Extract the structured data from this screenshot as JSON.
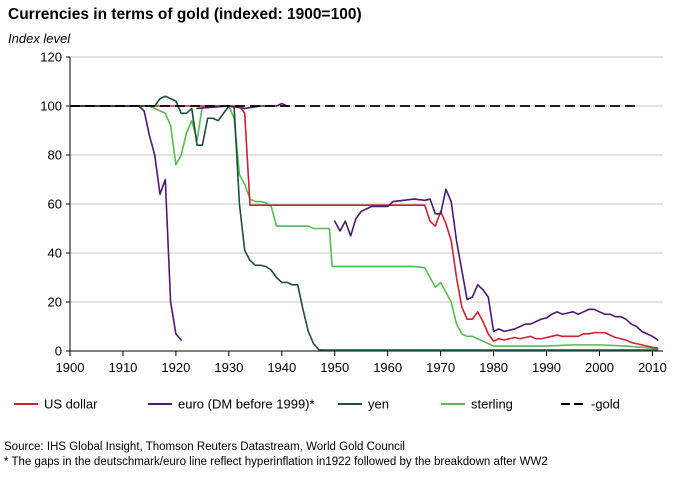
{
  "chart_data": {
    "type": "line",
    "title": "Currencies in terms of gold (indexed: 1900=100)",
    "ylabel": "Index level",
    "xlabel": "",
    "xlim": [
      1900,
      2012
    ],
    "ylim": [
      0,
      120
    ],
    "xticks": [
      "1900",
      "1910",
      "1920",
      "1930",
      "1940",
      "1950",
      "1960",
      "1970",
      "1980",
      "1990",
      "2000",
      "2010"
    ],
    "yticks": [
      "0",
      "20",
      "40",
      "60",
      "80",
      "100",
      "120"
    ],
    "grid": "horizontal",
    "legend_position": "bottom",
    "series": [
      {
        "name": "US dollar",
        "color": "#cc2233",
        "dash": "solid",
        "segments": [
          [
            [
              1900,
              100
            ],
            [
              1932,
              100
            ],
            [
              1933,
              97
            ],
            [
              1934,
              59.5
            ],
            [
              1940,
              59.5
            ],
            [
              1950,
              59.5
            ],
            [
              1960,
              59.5
            ],
            [
              1967,
              59.5
            ],
            [
              1968,
              53
            ],
            [
              1969,
              51
            ],
            [
              1970,
              57
            ],
            [
              1971,
              52
            ],
            [
              1972,
              45
            ],
            [
              1973,
              30
            ],
            [
              1974,
              18
            ],
            [
              1975,
              13
            ],
            [
              1976,
              13
            ],
            [
              1977,
              16
            ],
            [
              1978,
              12
            ],
            [
              1979,
              7
            ],
            [
              1980,
              4
            ],
            [
              1981,
              5
            ],
            [
              1982,
              4.5
            ],
            [
              1983,
              5
            ],
            [
              1984,
              5.5
            ],
            [
              1985,
              5
            ],
            [
              1986,
              5.5
            ],
            [
              1987,
              6
            ],
            [
              1988,
              5
            ],
            [
              1989,
              5
            ],
            [
              1990,
              5.5
            ],
            [
              1991,
              6
            ],
            [
              1992,
              6.5
            ],
            [
              1993,
              6
            ],
            [
              1994,
              6
            ],
            [
              1995,
              6
            ],
            [
              1996,
              6
            ],
            [
              1997,
              7
            ],
            [
              1998,
              7
            ],
            [
              1999,
              7.5
            ],
            [
              2000,
              7.5
            ],
            [
              2001,
              7.5
            ],
            [
              2002,
              6.5
            ],
            [
              2003,
              5.5
            ],
            [
              2004,
              5
            ],
            [
              2005,
              4.5
            ],
            [
              2006,
              3.5
            ],
            [
              2007,
              3
            ],
            [
              2008,
              2.5
            ],
            [
              2009,
              2
            ],
            [
              2010,
              1.5
            ],
            [
              2011,
              1.2
            ]
          ]
        ]
      },
      {
        "name": "euro (DM before 1999)*",
        "color": "#4b1a74",
        "dash": "solid",
        "segments": [
          [
            [
              1900,
              100
            ],
            [
              1912,
              100
            ],
            [
              1913,
              100
            ],
            [
              1914,
              98
            ],
            [
              1915,
              88
            ],
            [
              1916,
              80
            ],
            [
              1917,
              64
            ],
            [
              1918,
              70
            ],
            [
              1919,
              20
            ],
            [
              1920,
              7
            ],
            [
              1921,
              4.5
            ]
          ],
          [
            [
              1924,
              99
            ],
            [
              1930,
              100
            ],
            [
              1933,
              99
            ],
            [
              1936,
              100
            ],
            [
              1939,
              100
            ],
            [
              1940,
              101
            ],
            [
              1941,
              100
            ]
          ],
          [
            [
              1950,
              53
            ],
            [
              1951,
              49
            ],
            [
              1952,
              53
            ],
            [
              1953,
              47
            ],
            [
              1954,
              54
            ],
            [
              1955,
              57
            ],
            [
              1957,
              59
            ],
            [
              1959,
              59
            ],
            [
              1960,
              59
            ],
            [
              1961,
              61
            ],
            [
              1963,
              61.5
            ],
            [
              1965,
              62
            ],
            [
              1967,
              61.5
            ],
            [
              1968,
              62
            ],
            [
              1969,
              56
            ],
            [
              1970,
              56
            ],
            [
              1971,
              66
            ],
            [
              1972,
              61
            ],
            [
              1973,
              45
            ],
            [
              1974,
              33
            ],
            [
              1975,
              21
            ],
            [
              1976,
              22
            ],
            [
              1977,
              27
            ],
            [
              1978,
              25
            ],
            [
              1979,
              22
            ],
            [
              1980,
              8
            ],
            [
              1981,
              9
            ],
            [
              1982,
              8
            ],
            [
              1983,
              8.5
            ],
            [
              1984,
              9
            ],
            [
              1985,
              10
            ],
            [
              1986,
              11
            ],
            [
              1987,
              11
            ],
            [
              1988,
              12
            ],
            [
              1989,
              13
            ],
            [
              1990,
              13.5
            ],
            [
              1991,
              15
            ],
            [
              1992,
              16
            ],
            [
              1993,
              15
            ],
            [
              1994,
              15.5
            ],
            [
              1995,
              16
            ],
            [
              1996,
              15
            ],
            [
              1997,
              16
            ],
            [
              1998,
              17
            ],
            [
              1999,
              17
            ],
            [
              2000,
              16
            ],
            [
              2001,
              15
            ],
            [
              2002,
              15
            ],
            [
              2003,
              14
            ],
            [
              2004,
              14
            ],
            [
              2005,
              13
            ],
            [
              2006,
              11
            ],
            [
              2007,
              10
            ],
            [
              2008,
              8
            ],
            [
              2009,
              7
            ],
            [
              2010,
              6
            ],
            [
              2011,
              4.5
            ]
          ]
        ]
      },
      {
        "name": "yen",
        "color": "#1f4e3d",
        "dash": "solid",
        "segments": [
          [
            [
              1900,
              100
            ],
            [
              1916,
              100
            ],
            [
              1917,
              103
            ],
            [
              1918,
              104
            ],
            [
              1919,
              103
            ],
            [
              1920,
              102
            ],
            [
              1921,
              97
            ],
            [
              1922,
              97
            ],
            [
              1923,
              99
            ],
            [
              1924,
              84
            ],
            [
              1925,
              84
            ],
            [
              1926,
              95
            ],
            [
              1927,
              95
            ],
            [
              1928,
              94
            ],
            [
              1929,
              97
            ],
            [
              1930,
              100
            ],
            [
              1931,
              99.5
            ],
            [
              1932,
              60
            ],
            [
              1933,
              41
            ],
            [
              1934,
              37
            ],
            [
              1935,
              35
            ],
            [
              1936,
              35
            ],
            [
              1937,
              34.5
            ],
            [
              1938,
              33
            ],
            [
              1939,
              30
            ],
            [
              1940,
              28
            ],
            [
              1941,
              28
            ],
            [
              1942,
              27
            ],
            [
              1943,
              27
            ],
            [
              1944,
              17
            ],
            [
              1945,
              8
            ],
            [
              1946,
              3
            ],
            [
              1947,
              0.5
            ],
            [
              1948,
              0.4
            ],
            [
              1950,
              0.4
            ],
            [
              1960,
              0.4
            ],
            [
              1970,
              0.4
            ],
            [
              1980,
              0.4
            ],
            [
              1990,
              0.4
            ],
            [
              2000,
              0.4
            ],
            [
              2011,
              0.4
            ]
          ]
        ]
      },
      {
        "name": "sterling",
        "color": "#55bb55",
        "dash": "solid",
        "segments": [
          [
            [
              1900,
              100
            ],
            [
              1913,
              100
            ],
            [
              1914,
              100
            ],
            [
              1915,
              100
            ],
            [
              1916,
              99
            ],
            [
              1917,
              98
            ],
            [
              1918,
              97
            ],
            [
              1919,
              92
            ],
            [
              1920,
              76
            ],
            [
              1921,
              80
            ],
            [
              1922,
              89
            ],
            [
              1923,
              94
            ],
            [
              1924,
              86
            ],
            [
              1925,
              100
            ],
            [
              1926,
              100
            ],
            [
              1930,
              100
            ],
            [
              1931,
              95
            ],
            [
              1932,
              72
            ],
            [
              1933,
              68
            ],
            [
              1934,
              62
            ],
            [
              1935,
              61
            ],
            [
              1936,
              61
            ],
            [
              1937,
              60.5
            ],
            [
              1938,
              59
            ],
            [
              1939,
              51
            ],
            [
              1940,
              51
            ],
            [
              1945,
              51
            ],
            [
              1946,
              50
            ],
            [
              1949,
              50
            ],
            [
              1949.5,
              34.5
            ],
            [
              1955,
              34.5
            ],
            [
              1960,
              34.5
            ],
            [
              1965,
              34.5
            ],
            [
              1967,
              34
            ],
            [
              1968,
              30
            ],
            [
              1969,
              26
            ],
            [
              1970,
              28
            ],
            [
              1971,
              24
            ],
            [
              1972,
              20
            ],
            [
              1973,
              11
            ],
            [
              1974,
              7
            ],
            [
              1975,
              6
            ],
            [
              1976,
              6
            ],
            [
              1977,
              5
            ],
            [
              1978,
              4
            ],
            [
              1979,
              3
            ],
            [
              1980,
              2
            ],
            [
              1985,
              2
            ],
            [
              1990,
              2
            ],
            [
              1995,
              2.5
            ],
            [
              2000,
              2.5
            ],
            [
              2005,
              2
            ],
            [
              2008,
              1.5
            ],
            [
              2011,
              1
            ]
          ]
        ]
      },
      {
        "name": "-gold",
        "color": "#000000",
        "dash": "dashed",
        "segments": [
          [
            [
              1900,
              100
            ],
            [
              2007,
              100
            ]
          ]
        ]
      }
    ]
  },
  "source_line": "Source: IHS Global Insight, Thomson Reuters Datastream, World Gold Council",
  "footnote_line": "* The gaps in the deutschmark/euro line reflect  hyperinflation in1922 followed by the breakdown after WW2"
}
